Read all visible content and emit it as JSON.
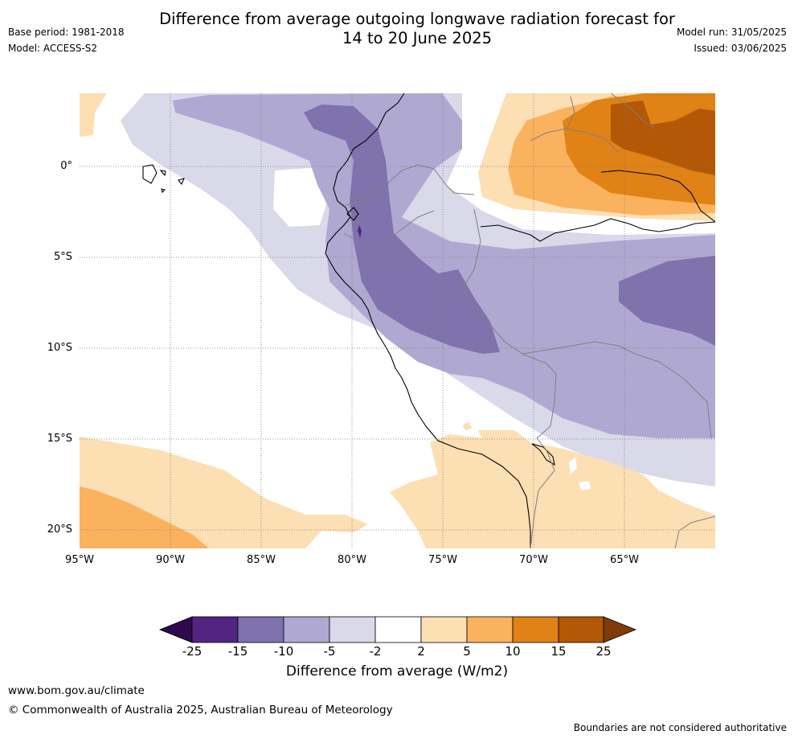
{
  "header": {
    "title_line1": "Difference from average outgoing longwave radiation forecast for",
    "title_line2": "14 to 20 June 2025",
    "base_period": "Base period: 1981-2018",
    "model": "Model: ACCESS-S2",
    "model_run": "Model run: 31/05/2025",
    "issued": "Issued: 03/06/2025"
  },
  "map": {
    "lat_labels": [
      "0°",
      "5°S",
      "10°S",
      "15°S",
      "20°S"
    ],
    "lon_labels": [
      "95°W",
      "90°W",
      "85°W",
      "80°W",
      "75°W",
      "70°W",
      "65°W"
    ]
  },
  "colorbar": {
    "label": "Difference from average (W/m2)",
    "ticks": [
      "-25",
      "-15",
      "-10",
      "-5",
      "-2",
      "2",
      "5",
      "10",
      "15",
      "25"
    ],
    "colors": {
      "below_-25": "#2d0a4e",
      "-25_-15": "#532482",
      "-15_-10": "#7f72ad",
      "-10_-5": "#afa9d1",
      "-5_-2": "#d9d9ea",
      "-2_2": "#ffffff",
      "2_5": "#fddfb4",
      "5_10": "#fbb25f",
      "10_15": "#e08216",
      "15_25": "#b35806",
      "above_25": "#7f3b08"
    }
  },
  "footer": {
    "url": "www.bom.gov.au/climate",
    "copyright": "© Commonwealth of Australia 2025, Australian Bureau of Meteorology",
    "note": "Boundaries are not considered authoritative"
  }
}
